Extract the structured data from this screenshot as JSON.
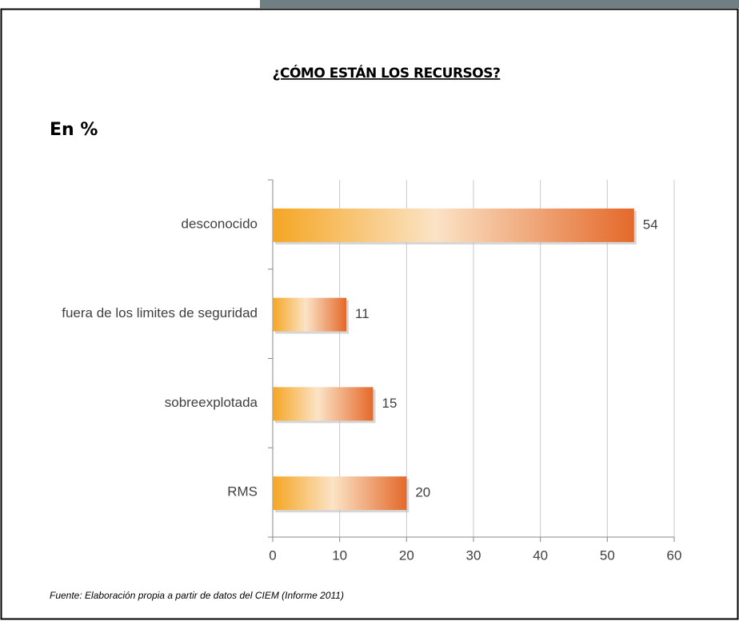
{
  "chart_data": {
    "type": "hbar",
    "title": "¿CÓMO ESTÁN LOS RECURSOS?",
    "subtitle": "En %",
    "source": "Fuente: Elaboración propia a partir de datos del CIEM (Informe 2011)",
    "categories": [
      "desconocido",
      "fuera de los limites de seguridad",
      "sobreexplotada",
      "RMS"
    ],
    "values": [
      54,
      11,
      15,
      20
    ],
    "color": [
      "#f5a623",
      "#fbe3c6",
      "#e4692a"
    ],
    "xlim": [
      0,
      60
    ],
    "xticks": [
      0,
      10,
      20,
      30,
      40,
      50,
      60
    ],
    "grid": true
  }
}
